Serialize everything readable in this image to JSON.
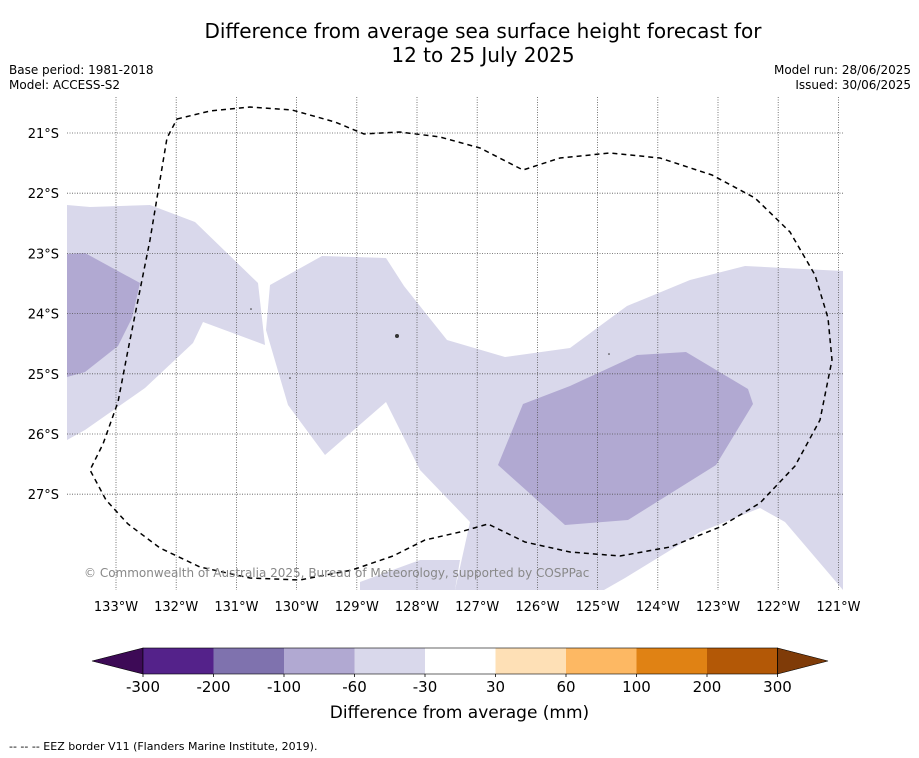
{
  "title": {
    "line1": "Difference from average sea surface height forecast for",
    "line2": "12 to 25 July 2025"
  },
  "meta_left": {
    "base_period": "Base period: 1981-2018",
    "model": "Model: ACCESS-S2"
  },
  "meta_right": {
    "model_run": "Model run: 28/06/2025",
    "issued": "Issued: 30/06/2025"
  },
  "map": {
    "lon_labels": [
      "133°W",
      "132°W",
      "131°W",
      "130°W",
      "129°W",
      "128°W",
      "127°W",
      "126°W",
      "125°W",
      "124°W",
      "123°W",
      "122°W",
      "121°W"
    ],
    "lat_labels": [
      "21°S",
      "22°S",
      "23°S",
      "24°S",
      "25°S",
      "26°S",
      "27°S"
    ],
    "copyright": "© Commonwealth of Australia 2025, Bureau of Meteorology, supported by COSPPac"
  },
  "colorbar": {
    "title": "Difference from average (mm)",
    "tick_labels": [
      "-300",
      "-200",
      "-100",
      "-60",
      "-30",
      "30",
      "60",
      "100",
      "200",
      "300"
    ],
    "colors": [
      "#3d0a56",
      "#54228a",
      "#7f72ae",
      "#b1a9d2",
      "#d9d8eb",
      "#ffffff",
      "#fee0b6",
      "#fdb863",
      "#e08214",
      "#b35806",
      "#7f3b08"
    ]
  },
  "footnote": "--  --  -- EEZ border V11 (Flanders Marine Institute, 2019)."
}
